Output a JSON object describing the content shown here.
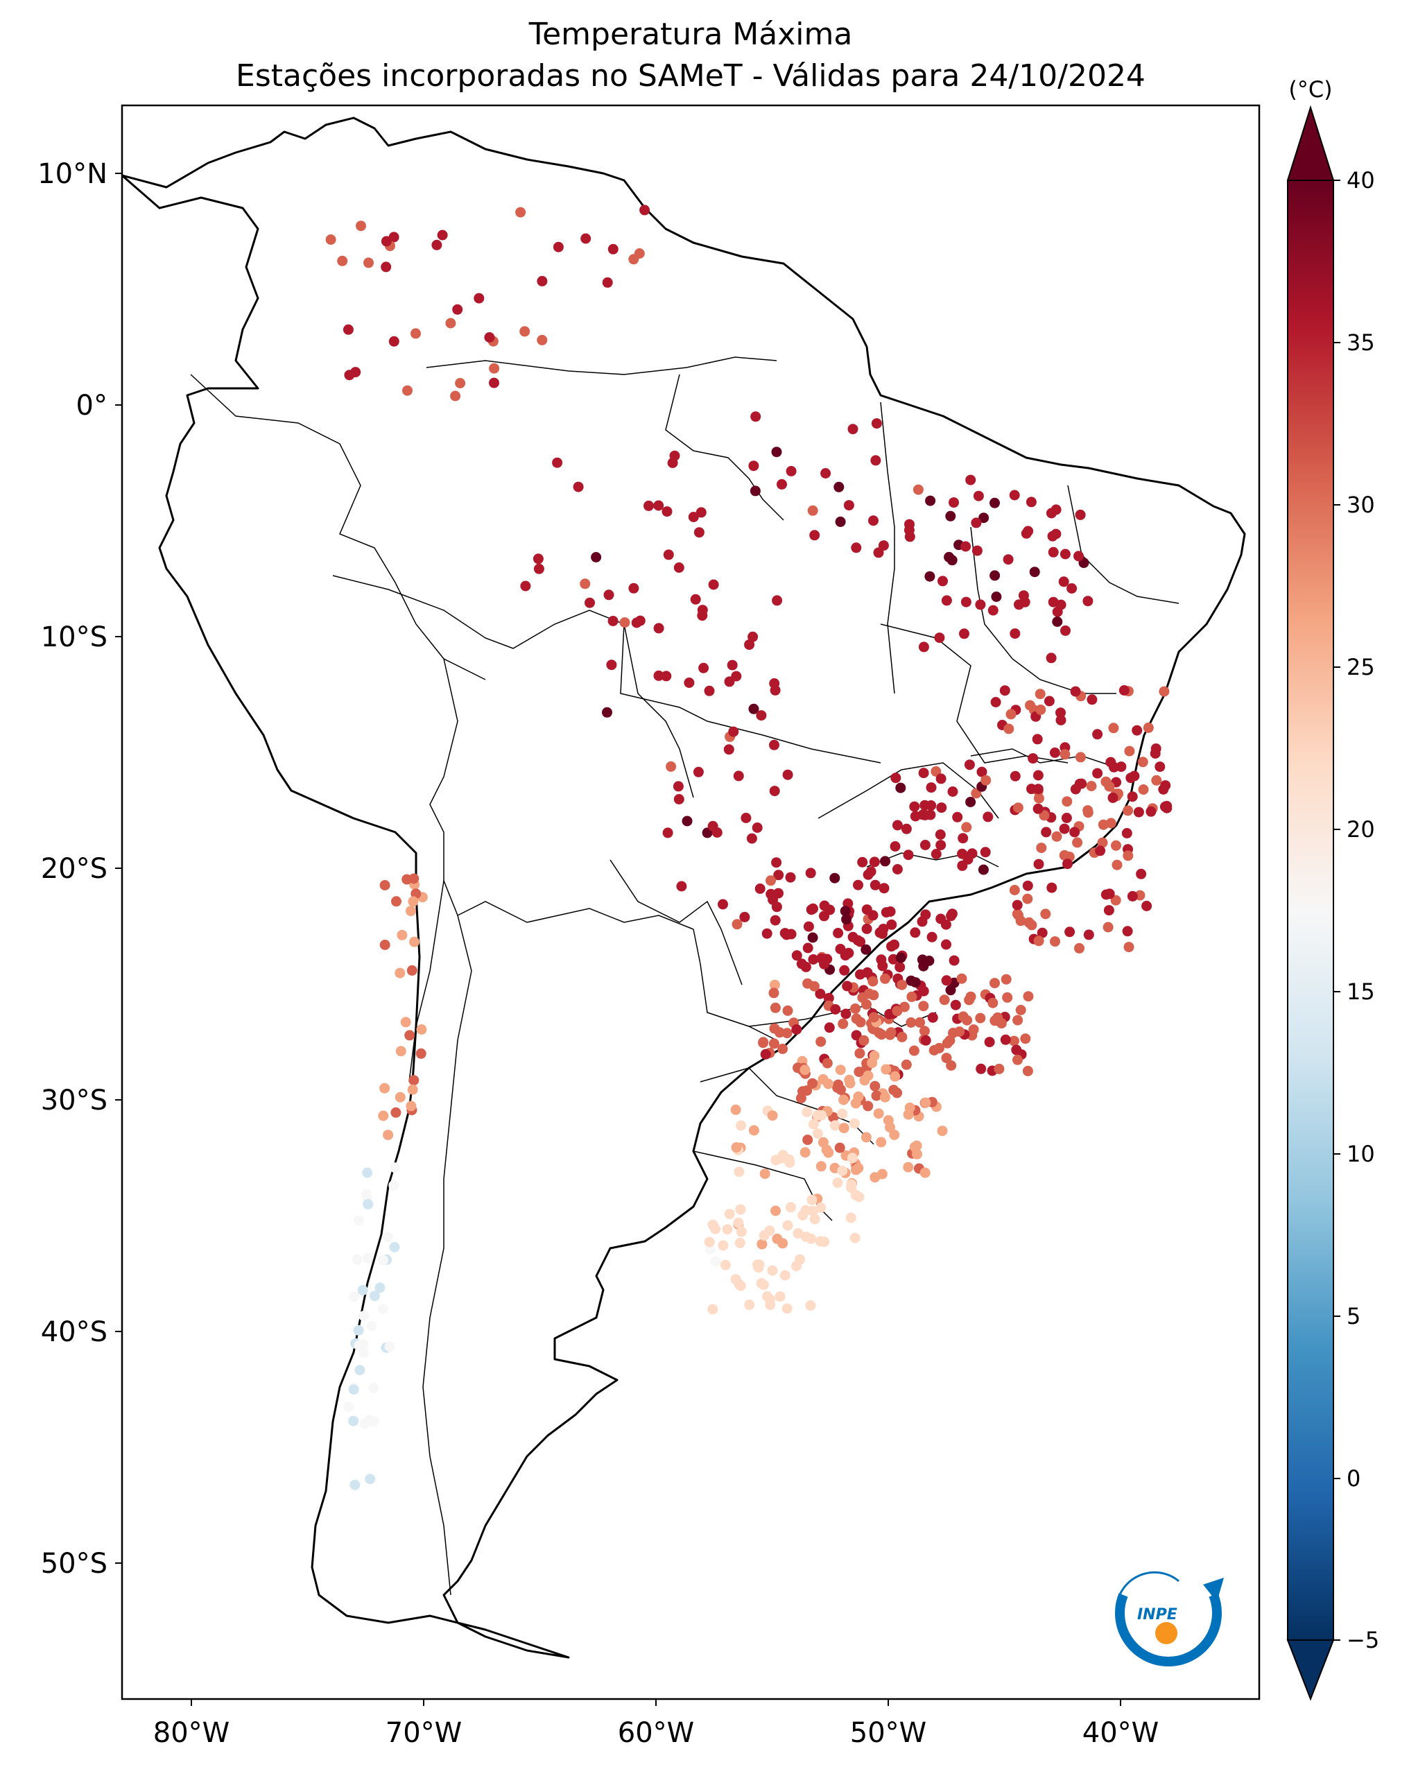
{
  "title": "Temperatura Máxima",
  "subtitle": "Estações incorporadas no SAMeT - Válidas para 24/10/2024",
  "map": {
    "lon_range": [
      -83,
      -34
    ],
    "lat_range": [
      -56,
      13
    ],
    "lon_ticks": [
      "80°W",
      "70°W",
      "60°W",
      "50°W",
      "40°W"
    ],
    "lat_ticks": [
      "10°N",
      "0°",
      "10°S",
      "20°S",
      "30°S",
      "40°S",
      "50°S"
    ],
    "colorbar": {
      "unit": "(°C)",
      "min": -5,
      "max": 40,
      "ticks": [
        "40",
        "35",
        "30",
        "25",
        "20",
        "15",
        "10",
        "5",
        "0",
        "−5"
      ],
      "colormap": [
        "#053061",
        "#2166ac",
        "#4393c3",
        "#92c5de",
        "#d1e5f0",
        "#f7f7f7",
        "#fddbc7",
        "#f4a582",
        "#d6604d",
        "#b2182b",
        "#67001f"
      ]
    },
    "logo": {
      "text": "INPE",
      "colors": [
        "#0072bc",
        "#f7941d"
      ]
    }
  }
}
